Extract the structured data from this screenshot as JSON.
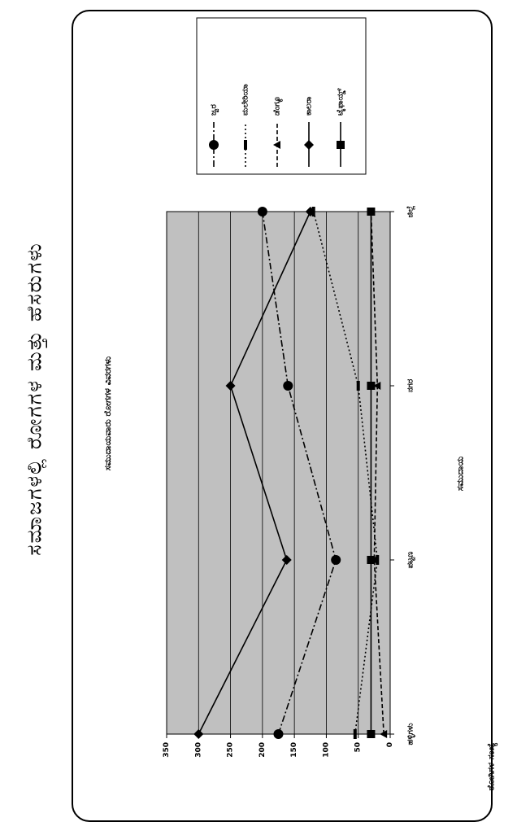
{
  "page": {
    "heading": "ಸಮಾಜಗಳಲ್ಲಿ ರೋಗಗಳ ಮತ್ತು ಹೆಸರುಗಳು"
  },
  "chart_data": {
    "type": "line",
    "title": "ಸಮುದಾಯವಾರು ರೋಗಗಳ ವಿವರಗಳು",
    "xlabel": "ಸಮುದಾಯ",
    "ylabel": "ರೋಗಿಗಳ ಸಂಖ್ಯೆ",
    "categories": [
      "ಹಳ್ಳಿಗಳು",
      "ಪಟ್ಟಣ",
      "ನಗರ",
      "ಜಿಲ್ಲೆ"
    ],
    "ylim": [
      0,
      350
    ],
    "yticks": [
      0,
      50,
      100,
      150,
      200,
      250,
      300,
      350
    ],
    "grid": true,
    "legend_position": "right",
    "colors": {
      "plot_bg": "#c0c0c0",
      "line": "#000000",
      "frame": "#000000"
    },
    "series": [
      {
        "name": "ಜ್ವರ",
        "marker": "circle",
        "dash": "8 3 2 3",
        "values": [
          175,
          85,
          160,
          200
        ]
      },
      {
        "name": "ಮಲೇರಿಯಾ",
        "marker": "dash",
        "dash": "2 3",
        "values": [
          55,
          20,
          50,
          120
        ]
      },
      {
        "name": "ಡೆಂಗ್ಯೂ",
        "marker": "triangle",
        "dash": "5 3",
        "values": [
          10,
          25,
          20,
          30
        ]
      },
      {
        "name": "ಕಾಲರಾ",
        "marker": "diamond",
        "dash": "",
        "values": [
          300,
          162,
          250,
          125
        ]
      },
      {
        "name": "ಟೈಫಾಯ್ಡ್",
        "marker": "square",
        "dash": "",
        "values": [
          30,
          30,
          30,
          30
        ]
      }
    ]
  }
}
